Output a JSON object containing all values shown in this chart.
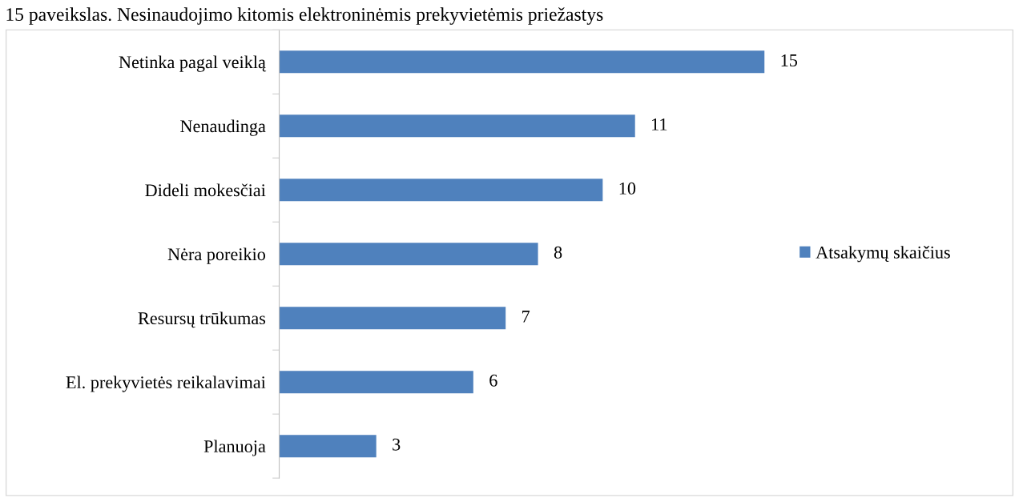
{
  "chart_data": {
    "type": "bar",
    "orientation": "horizontal",
    "title": "15 paveikslas. Nesinaudojimo kitomis elektroninėmis prekyvietėmis priežastys",
    "categories": [
      "Netinka pagal veiklą",
      "Nenaudinga",
      "Dideli mokesčiai",
      "Nėra poreikio",
      "Resursų trūkumas",
      "El. prekyvietės reikalavimai",
      "Planuoja"
    ],
    "series": [
      {
        "name": "Atsakymų skaičius",
        "color": "#4f81bd",
        "values": [
          15,
          11,
          10,
          8,
          7,
          6,
          3
        ]
      }
    ],
    "data_labels": true,
    "legend": "right",
    "grid": false,
    "tick_labels": "y"
  }
}
